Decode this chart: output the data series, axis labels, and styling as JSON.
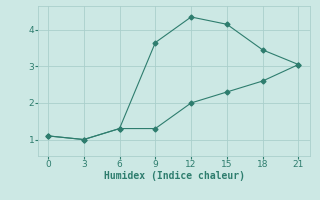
{
  "line1_x": [
    0,
    3,
    6,
    9,
    12,
    15,
    18,
    21
  ],
  "line1_y": [
    1.1,
    1.0,
    1.3,
    3.65,
    4.35,
    4.15,
    3.45,
    3.05
  ],
  "line2_x": [
    0,
    3,
    6,
    9,
    12,
    15,
    18,
    21
  ],
  "line2_y": [
    1.1,
    1.0,
    1.3,
    1.3,
    2.0,
    2.3,
    2.6,
    3.05
  ],
  "line_color": "#2e7d6e",
  "bg_color": "#cce8e4",
  "grid_color": "#aacfcc",
  "xlabel": "Humidex (Indice chaleur)",
  "xlabel_fontsize": 7,
  "xticks": [
    0,
    3,
    6,
    9,
    12,
    15,
    18,
    21
  ],
  "yticks": [
    1,
    2,
    3,
    4
  ],
  "xlim": [
    -0.8,
    22.0
  ],
  "ylim": [
    0.55,
    4.65
  ],
  "marker": "D",
  "marker_size": 2.5,
  "line_width": 0.8
}
